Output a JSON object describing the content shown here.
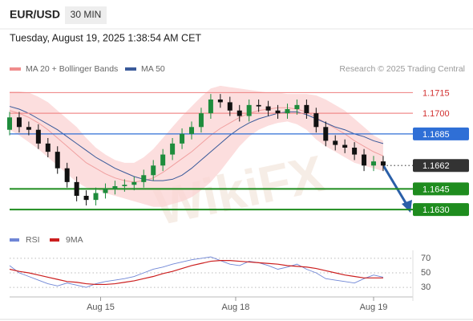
{
  "header": {
    "symbol": "EUR/USD",
    "timeframe": "30 MIN",
    "date": "Tuesday, August 19, 2025 1:38:54 AM CET"
  },
  "chart_data": [
    {
      "type": "candlestick",
      "legend": [
        {
          "name": "MA 20 + Bollinger Bands",
          "color": "#f08c8c"
        },
        {
          "name": "MA 50",
          "color": "#3a5a9a"
        }
      ],
      "credit": "Research © 2025 Trading Central",
      "watermark": "WikiFX",
      "xlim": [
        0,
        42.1
      ],
      "xticks": [
        {
          "value": 9.5,
          "label": "Aug 15"
        },
        {
          "value": 23.6,
          "label": "Aug 18"
        },
        {
          "value": 38,
          "label": "Aug 19"
        }
      ],
      "ylim": [
        1.1619,
        1.1724
      ],
      "up_color": "#1e8c3c",
      "down_color": "#111111",
      "open": [
        1.1688,
        1.1697,
        1.169,
        1.1688,
        1.1678,
        1.1672,
        1.166,
        1.165,
        1.164,
        1.1637,
        1.1642,
        1.1645,
        1.1647,
        1.1648,
        1.165,
        1.1655,
        1.1662,
        1.167,
        1.1678,
        1.1685,
        1.169,
        1.17,
        1.171,
        1.1708,
        1.1702,
        1.1698,
        1.1706,
        1.1705,
        1.1702,
        1.17,
        1.1703,
        1.1706,
        1.17,
        1.169,
        1.168,
        1.1677,
        1.1675,
        1.167,
        1.1662,
        1.1665
      ],
      "high": [
        1.1701,
        1.1701,
        1.1694,
        1.1692,
        1.1682,
        1.1676,
        1.1664,
        1.1654,
        1.1644,
        1.1646,
        1.1649,
        1.1651,
        1.1652,
        1.1654,
        1.1659,
        1.1666,
        1.1674,
        1.1682,
        1.1689,
        1.1694,
        1.1704,
        1.1714,
        1.1714,
        1.1712,
        1.1706,
        1.171,
        1.171,
        1.1709,
        1.1706,
        1.1707,
        1.171,
        1.171,
        1.1704,
        1.1694,
        1.1684,
        1.1681,
        1.1679,
        1.1674,
        1.1669,
        1.1669
      ],
      "low": [
        1.1684,
        1.1686,
        1.1684,
        1.1674,
        1.1668,
        1.1656,
        1.1646,
        1.1636,
        1.1633,
        1.1633,
        1.1638,
        1.1641,
        1.1643,
        1.1644,
        1.1646,
        1.1651,
        1.1658,
        1.1666,
        1.1674,
        1.1681,
        1.1686,
        1.1696,
        1.1704,
        1.1698,
        1.1694,
        1.1694,
        1.1701,
        1.1698,
        1.1696,
        1.1696,
        1.1699,
        1.1696,
        1.1686,
        1.1676,
        1.1673,
        1.1671,
        1.1666,
        1.1658,
        1.1658,
        1.1658
      ],
      "close": [
        1.1697,
        1.169,
        1.1688,
        1.1678,
        1.1672,
        1.166,
        1.165,
        1.164,
        1.1637,
        1.1642,
        1.1645,
        1.1647,
        1.1648,
        1.165,
        1.1655,
        1.1662,
        1.167,
        1.1678,
        1.1685,
        1.169,
        1.17,
        1.171,
        1.1708,
        1.1702,
        1.1698,
        1.1706,
        1.1705,
        1.1702,
        1.17,
        1.1703,
        1.1706,
        1.17,
        1.169,
        1.168,
        1.1677,
        1.1675,
        1.167,
        1.1662,
        1.1665,
        1.1662
      ],
      "ma20": [
        1.1702,
        1.17,
        1.1697,
        1.1693,
        1.1688,
        1.1682,
        1.1676,
        1.167,
        1.1664,
        1.166,
        1.1656,
        1.1653,
        1.1651,
        1.165,
        1.1651,
        1.1653,
        1.1657,
        1.1662,
        1.1667,
        1.1672,
        1.1678,
        1.1684,
        1.1689,
        1.1693,
        1.1697,
        1.17,
        1.1702,
        1.1703,
        1.1704,
        1.1704,
        1.1703,
        1.1701,
        1.1697,
        1.1693,
        1.1689,
        1.1685,
        1.168,
        1.1676,
        1.1672,
        1.1669
      ],
      "band_upper": [
        1.1716,
        1.1716,
        1.1715,
        1.1712,
        1.1708,
        1.1702,
        1.1696,
        1.169,
        1.1682,
        1.1675,
        1.167,
        1.1666,
        1.1664,
        1.1664,
        1.1668,
        1.1674,
        1.1682,
        1.169,
        1.1698,
        1.1705,
        1.1712,
        1.1718,
        1.172,
        1.1719,
        1.1718,
        1.1717,
        1.1716,
        1.1715,
        1.1715,
        1.1714,
        1.1714,
        1.1714,
        1.1713,
        1.171,
        1.1706,
        1.1702,
        1.1696,
        1.169,
        1.1684,
        1.168
      ],
      "band_lower": [
        1.1688,
        1.1684,
        1.1679,
        1.1674,
        1.1668,
        1.1662,
        1.1656,
        1.165,
        1.1646,
        1.1645,
        1.1642,
        1.164,
        1.1638,
        1.1636,
        1.1634,
        1.1632,
        1.1632,
        1.1634,
        1.1636,
        1.1639,
        1.1644,
        1.165,
        1.1658,
        1.1667,
        1.1676,
        1.1683,
        1.1688,
        1.1691,
        1.1693,
        1.1694,
        1.1692,
        1.1688,
        1.1681,
        1.1676,
        1.1672,
        1.1668,
        1.1664,
        1.1662,
        1.166,
        1.1658
      ],
      "ma50": [
        1.1705,
        1.1703,
        1.17,
        1.1696,
        1.1692,
        1.1688,
        1.1683,
        1.1678,
        1.1673,
        1.1668,
        1.1664,
        1.166,
        1.1657,
        1.1654,
        1.1652,
        1.1651,
        1.1651,
        1.1652,
        1.1655,
        1.166,
        1.1666,
        1.1672,
        1.1678,
        1.1684,
        1.1689,
        1.1693,
        1.1696,
        1.1698,
        1.17,
        1.1701,
        1.1701,
        1.1699,
        1.1696,
        1.1693,
        1.169,
        1.1688,
        1.1685,
        1.1683,
        1.168,
        1.1678
      ],
      "levels": [
        {
          "value": 1.1715,
          "label": "1.1715",
          "color": "#f08c8c",
          "box": false
        },
        {
          "value": 1.17,
          "label": "1.1700",
          "color": "#f08c8c",
          "box": false
        },
        {
          "value": 1.1685,
          "label": "1.1685",
          "color": "#2f6fd6",
          "box": true
        },
        {
          "value": 1.1662,
          "label": "1.1662",
          "color": "#333333",
          "box": true
        },
        {
          "value": 1.1645,
          "label": "1.1645",
          "color": "#1e8c1e",
          "box": true
        },
        {
          "value": 1.163,
          "label": "1.1630",
          "color": "#1e8c1e",
          "box": true
        }
      ]
    },
    {
      "type": "line",
      "ylim": [
        19,
        81
      ],
      "yticks": [
        70,
        50,
        30
      ],
      "grid": true,
      "series": [
        {
          "name": "RSI",
          "color": "#6f86d6",
          "values": [
            60,
            50,
            45,
            40,
            35,
            32,
            36,
            33,
            30,
            35,
            38,
            40,
            42,
            45,
            50,
            55,
            58,
            62,
            65,
            68,
            70,
            72,
            67,
            62,
            60,
            66,
            64,
            60,
            55,
            58,
            62,
            55,
            50,
            42,
            40,
            38,
            36,
            42,
            47,
            44
          ]
        },
        {
          "name": "9MA",
          "color": "#cc1f1f",
          "values": [
            55,
            52,
            50,
            47,
            44,
            41,
            38,
            37,
            35,
            34,
            34,
            35,
            37,
            39,
            42,
            45,
            49,
            52,
            56,
            60,
            63,
            66,
            67,
            67,
            66,
            65,
            64,
            63,
            62,
            60,
            59,
            58,
            56,
            53,
            50,
            47,
            45,
            43,
            43,
            43
          ]
        }
      ]
    }
  ]
}
